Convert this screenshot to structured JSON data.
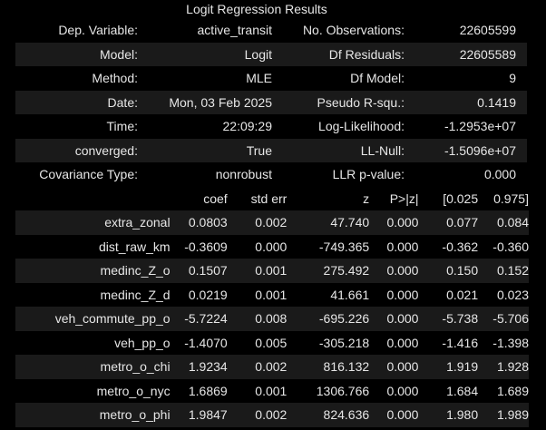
{
  "caption": "Logit Regression Results",
  "summary": [
    [
      "Dep. Variable:",
      "active_transit",
      "No. Observations:",
      "22605599"
    ],
    [
      "Model:",
      "Logit",
      "Df Residuals:",
      "22605589"
    ],
    [
      "Method:",
      "MLE",
      "Df Model:",
      "9"
    ],
    [
      "Date:",
      "Mon, 03 Feb 2025",
      "Pseudo R-squ.:",
      "0.1419"
    ],
    [
      "Time:",
      "22:09:29",
      "Log-Likelihood:",
      "-1.2953e+07"
    ],
    [
      "converged:",
      "True",
      "LL-Null:",
      "-1.5096e+07"
    ],
    [
      "Covariance Type:",
      "nonrobust",
      "LLR p-value:",
      "0.000"
    ]
  ],
  "coef_headers": [
    "",
    "coef",
    "std err",
    "z",
    "P>|z|",
    "[0.025",
    "0.975]"
  ],
  "coef_rows": [
    [
      "extra_zonal",
      "0.0803",
      "0.002",
      "47.740",
      "0.000",
      "0.077",
      "0.084"
    ],
    [
      "dist_raw_km",
      "-0.3609",
      "0.000",
      "-749.365",
      "0.000",
      "-0.362",
      "-0.360"
    ],
    [
      "medinc_Z_o",
      "0.1507",
      "0.001",
      "275.492",
      "0.000",
      "0.150",
      "0.152"
    ],
    [
      "medinc_Z_d",
      "0.0219",
      "0.001",
      "41.661",
      "0.000",
      "0.021",
      "0.023"
    ],
    [
      "veh_commute_pp_o",
      "-5.7224",
      "0.008",
      "-695.226",
      "0.000",
      "-5.738",
      "-5.706"
    ],
    [
      "veh_pp_o",
      "-1.4070",
      "0.005",
      "-305.218",
      "0.000",
      "-1.416",
      "-1.398"
    ],
    [
      "metro_o_chi",
      "1.9234",
      "0.002",
      "816.132",
      "0.000",
      "1.919",
      "1.928"
    ],
    [
      "metro_o_nyc",
      "1.6869",
      "0.001",
      "1306.766",
      "0.000",
      "1.684",
      "1.689"
    ],
    [
      "metro_o_phi",
      "1.9847",
      "0.002",
      "824.636",
      "0.000",
      "1.980",
      "1.989"
    ]
  ],
  "colors": {
    "background": "#000000",
    "shade": "#1a1a1a",
    "text": "#e6e6e6"
  }
}
